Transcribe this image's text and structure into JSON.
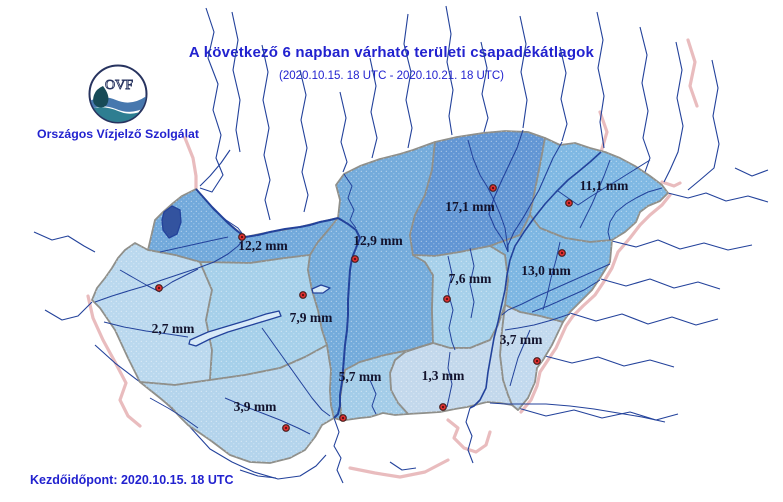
{
  "header": {
    "title": "A következő 6 napban várható területi csapadékátlagok",
    "subtitle": "(2020.10.15. 18 UTC - 2020.10.21. 18 UTC)"
  },
  "logo": {
    "acronym": "OVF",
    "org_name": "Országos Vízjelző Szolgálat"
  },
  "footer": {
    "start_label": "Kezdőidőpont:",
    "start_value": "2020.10.15. 18 UTC"
  },
  "colors": {
    "heading_blue": "#2222cf",
    "label_text": "#13132d",
    "river": "#23429b",
    "region_border": "#8f8f8a",
    "outside_pink": "#e9bcbe",
    "station_dot": "#e03030",
    "station_ring": "#4a2020",
    "lake_fill": "#d8eaf8",
    "ferto_fill": "#33539f"
  },
  "map": {
    "unit": "mm",
    "regions": [
      {
        "value": "12,2 mm",
        "shade": "#72a9db"
      },
      {
        "value": "2,7 mm",
        "shade": "#bad8ee"
      },
      {
        "value": "7,9 mm",
        "shade": "#a6d0ea"
      },
      {
        "value": "3,9 mm",
        "shade": "#b4d4ec"
      },
      {
        "value": "12,9 mm",
        "shade": "#74abdb"
      },
      {
        "value": "17,1 mm",
        "shade": "#6296d4"
      },
      {
        "value": "11,1 mm",
        "shade": "#7fb8e3"
      },
      {
        "value": "13,0 mm",
        "shade": "#7db6e2"
      },
      {
        "value": "7,6 mm",
        "shade": "#a6d0ea"
      },
      {
        "value": "3,7 mm",
        "shade": "#c2d9ee"
      },
      {
        "value": "1,3 mm",
        "shade": "#c3d8ec"
      },
      {
        "value": "5,7 mm",
        "shade": "#a3cce8"
      }
    ]
  }
}
